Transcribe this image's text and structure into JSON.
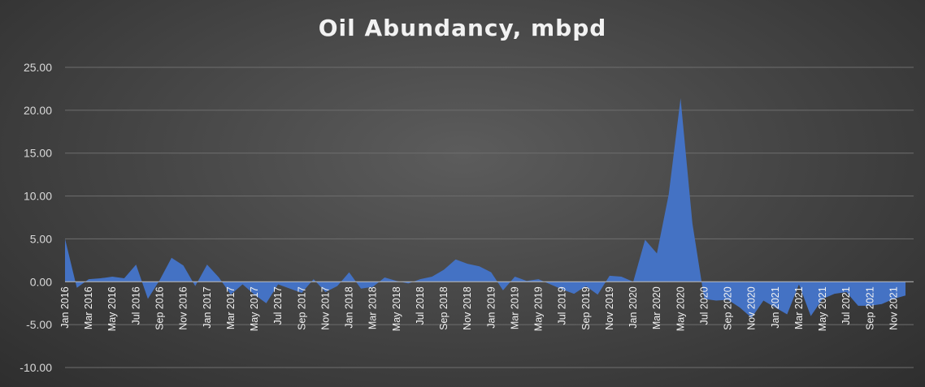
{
  "chart_data": {
    "type": "area",
    "title": "Oil Abundancy, mbpd",
    "xlabel": "",
    "ylabel": "",
    "ylim": [
      -10,
      25
    ],
    "yticks": [
      "-10.00",
      "-5.00",
      "0.00",
      "5.00",
      "10.00",
      "15.00",
      "20.00",
      "25.00"
    ],
    "grid": true,
    "legend": "none",
    "series_color": "#4472C4",
    "x": [
      "Jan 2016",
      "Feb 2016",
      "Mar 2016",
      "Apr 2016",
      "May 2016",
      "Jun 2016",
      "Jul 2016",
      "Aug 2016",
      "Sep 2016",
      "Oct 2016",
      "Nov 2016",
      "Dec 2016",
      "Jan 2017",
      "Feb 2017",
      "Mar 2017",
      "Apr 2017",
      "May 2017",
      "Jun 2017",
      "Jul 2017",
      "Aug 2017",
      "Sep 2017",
      "Oct 2017",
      "Nov 2017",
      "Dec 2017",
      "Jan 2018",
      "Feb 2018",
      "Mar 2018",
      "Apr 2018",
      "May 2018",
      "Jun 2018",
      "Jul 2018",
      "Aug 2018",
      "Sep 2018",
      "Oct 2018",
      "Nov 2018",
      "Dec 2018",
      "Jan 2019",
      "Feb 2019",
      "Mar 2019",
      "Apr 2019",
      "May 2019",
      "Jun 2019",
      "Jul 2019",
      "Aug 2019",
      "Sep 2019",
      "Oct 2019",
      "Nov 2019",
      "Dec 2019",
      "Jan 2020",
      "Feb 2020",
      "Mar 2020",
      "Apr 2020",
      "May 2020",
      "Jun 2020",
      "Jul 2020",
      "Aug 2020",
      "Sep 2020",
      "Oct 2020",
      "Nov 2020",
      "Dec 2020",
      "Jan 2021",
      "Feb 2021",
      "Mar 2021",
      "Apr 2021",
      "May 2021",
      "Jun 2021",
      "Jul 2021",
      "Aug 2021",
      "Sep 2021",
      "Oct 2021",
      "Nov 2021",
      "Dec 2021"
    ],
    "x_tick_labels": [
      "Jan 2016",
      "Mar 2016",
      "May 2016",
      "Jul 2016",
      "Sep 2016",
      "Nov 2016",
      "Jan 2017",
      "Mar 2017",
      "May 2017",
      "Jul 2017",
      "Sep 2017",
      "Nov 2017",
      "Jan 2018",
      "Mar 2018",
      "May 2018",
      "Jul 2018",
      "Sep 2018",
      "Nov 2018",
      "Jan 2019",
      "Mar 2019",
      "May 2019",
      "Jul 2019",
      "Sep 2019",
      "Nov 2019",
      "Jan 2020",
      "Mar 2020",
      "May 2020",
      "Jul 2020",
      "Sep 2020",
      "Nov 2020",
      "Jan 2021",
      "Mar 2021",
      "May 2021",
      "Jul 2021",
      "Sep 2021",
      "Nov 2021"
    ],
    "series": [
      {
        "values": [
          5.0,
          -0.7,
          0.3,
          0.4,
          0.6,
          0.4,
          2.0,
          -2.0,
          0.2,
          2.8,
          1.9,
          -0.5,
          2.0,
          0.5,
          -1.5,
          -0.3,
          -1.5,
          -2.5,
          -0.3,
          -0.8,
          -1.3,
          0.3,
          -1.2,
          -0.5,
          1.1,
          -0.8,
          -0.6,
          0.5,
          0.1,
          -0.2,
          0.3,
          0.6,
          1.4,
          2.6,
          2.1,
          1.8,
          1.1,
          -1.0,
          0.6,
          0.1,
          0.3,
          -0.3,
          -0.9,
          -1.4,
          -0.5,
          -1.5,
          0.7,
          0.6,
          0.0,
          4.9,
          3.3,
          10.2,
          21.4,
          6.8,
          -2.0,
          -2.2,
          -2.1,
          -3.0,
          -4.2,
          -2.2,
          -3.0,
          -3.8,
          -0.3,
          -4.0,
          -2.0,
          -1.4,
          -1.2,
          -2.8,
          -2.8,
          -2.6,
          -2.0,
          -1.6
        ]
      }
    ]
  }
}
